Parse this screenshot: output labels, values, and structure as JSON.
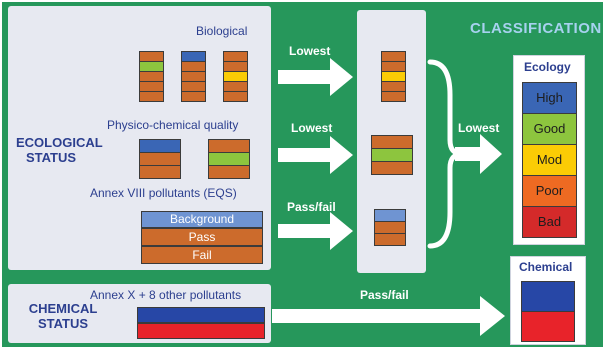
{
  "labels": {
    "biological": "Biological",
    "physico": "Physico-chemical quality",
    "annex_viii": "Annex VIII pollutants (EQS)",
    "ecological_status": "ECOLOGICAL STATUS",
    "chemical_status": "CHEMICAL STATUS",
    "annex_x": "Annex X + 8 other pollutants",
    "classification": "CLASSIFICATION"
  },
  "arrows": {
    "lowest_1": "Lowest",
    "lowest_2": "Lowest",
    "pass_fail_1": "Pass/fail",
    "lowest_3": "Lowest",
    "pass_fail_2": "Pass/fail"
  },
  "annex_viii_rows": [
    "Background",
    "Pass",
    "Fail"
  ],
  "ecology": {
    "title": "Ecology",
    "classes": [
      {
        "label": "High",
        "color": "#3a66b5"
      },
      {
        "label": "Good",
        "color": "#8dc53e"
      },
      {
        "label": "Mod",
        "color": "#fbcc05"
      },
      {
        "label": "Poor",
        "color": "#ee6a22"
      },
      {
        "label": "Bad",
        "color": "#d42a2a"
      }
    ]
  },
  "chemical": {
    "title": "Chemical",
    "colors": [
      "#2747a6",
      "#e8232a"
    ]
  },
  "colors": {
    "background": "#26975b",
    "panel": "#e7e9f1",
    "brown": "#cc6b2c",
    "blue": "#3a66b5",
    "light_blue": "#6f94d2",
    "green": "#8dc53e",
    "yellow": "#fbcc05",
    "red": "#e8232a",
    "arrow": "#ffffff"
  }
}
